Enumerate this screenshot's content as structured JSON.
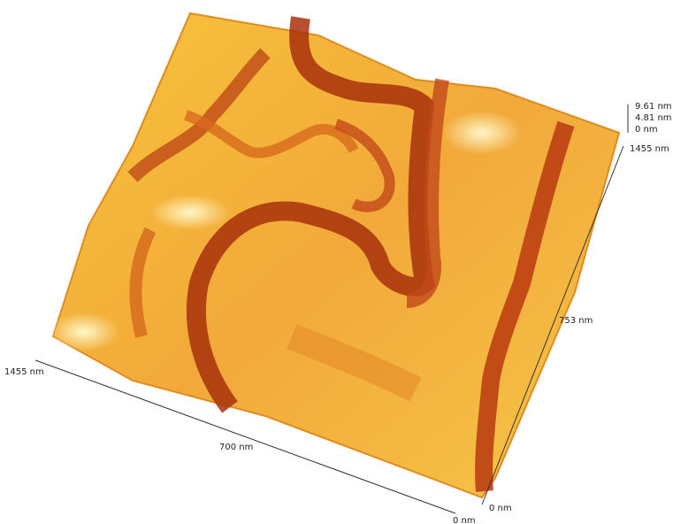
{
  "axes": {
    "z": {
      "max": "9.61 nm",
      "mid": "4.81 nm",
      "min": "0 nm"
    },
    "y": {
      "max": "1455 nm",
      "mid": "753 nm",
      "min": "0 nm"
    },
    "x": {
      "max": "1455 nm",
      "mid": "700 nm",
      "min": "0 nm"
    }
  }
}
